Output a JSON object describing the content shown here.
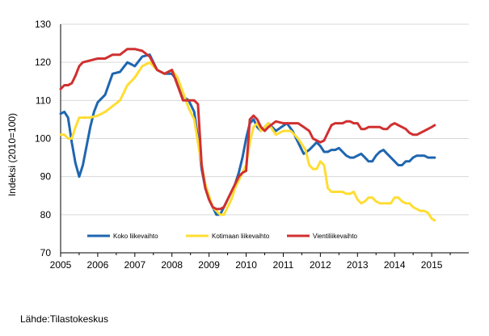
{
  "chart_data": {
    "type": "line",
    "title": "",
    "xlabel": "",
    "ylabel": "Indeksi (2010=100)",
    "ylim": [
      70,
      130
    ],
    "xlim": [
      2005,
      2016
    ],
    "yticks": [
      "70",
      "80",
      "90",
      "100",
      "110",
      "120",
      "130"
    ],
    "xticks": [
      "2005",
      "2006",
      "2007",
      "2008",
      "2009",
      "2010",
      "2011",
      "2012",
      "2013",
      "2014",
      "2015"
    ],
    "grid": "horizontal",
    "legend_position": "bottom-left inside",
    "source": "Lähde:Tilastokeskus",
    "series": [
      {
        "name": "Koko liikevaihto",
        "color": "#1f66b0",
        "x": [
          2005.0,
          2005.1,
          2005.2,
          2005.3,
          2005.4,
          2005.5,
          2005.6,
          2005.7,
          2005.8,
          2005.9,
          2006.0,
          2006.2,
          2006.4,
          2006.6,
          2006.8,
          2006.9,
          2007.0,
          2007.2,
          2007.4,
          2007.6,
          2007.8,
          2008.0,
          2008.15,
          2008.3,
          2008.45,
          2008.6,
          2008.7,
          2008.8,
          2008.9,
          2009.0,
          2009.1,
          2009.2,
          2009.3,
          2009.4,
          2009.5,
          2009.6,
          2009.7,
          2009.8,
          2009.9,
          2010.0,
          2010.1,
          2010.2,
          2010.3,
          2010.4,
          2010.5,
          2010.6,
          2010.8,
          2010.95,
          2011.1,
          2011.25,
          2011.4,
          2011.55,
          2011.7,
          2011.8,
          2011.9,
          2012.0,
          2012.1,
          2012.2,
          2012.3,
          2012.4,
          2012.5,
          2012.6,
          2012.7,
          2012.8,
          2012.9,
          2013.0,
          2013.1,
          2013.2,
          2013.3,
          2013.4,
          2013.5,
          2013.6,
          2013.7,
          2013.8,
          2013.9,
          2014.0,
          2014.1,
          2014.2,
          2014.3,
          2014.4,
          2014.5,
          2014.6,
          2014.7,
          2014.8,
          2014.9,
          2015.0,
          2015.08
        ],
        "values": [
          106.5,
          107,
          105.5,
          99,
          93.5,
          90,
          93,
          98,
          103,
          107,
          109.5,
          111.5,
          117,
          117.5,
          120,
          119.5,
          119,
          121.5,
          122,
          118,
          117,
          117,
          115,
          111,
          110,
          107,
          100,
          92,
          87,
          84,
          82,
          80,
          80,
          82,
          84,
          86,
          88,
          91,
          95,
          100,
          104,
          105,
          103,
          102,
          103,
          104,
          102,
          103,
          104,
          102,
          99,
          96,
          97,
          98,
          99,
          98,
          96.5,
          96.5,
          97,
          97,
          97.5,
          96.5,
          95.5,
          95,
          95,
          95.5,
          96,
          95,
          94,
          94,
          95.5,
          96.5,
          97,
          96,
          95,
          94,
          93,
          93,
          94,
          94,
          95,
          95.5,
          95.5,
          95.5,
          95,
          95,
          95
        ]
      },
      {
        "name": "Kotimaan liikevaihto",
        "color": "#ffdd33",
        "x": [
          2005.0,
          2005.1,
          2005.2,
          2005.3,
          2005.4,
          2005.5,
          2005.6,
          2005.8,
          2006.0,
          2006.2,
          2006.4,
          2006.6,
          2006.8,
          2007.0,
          2007.2,
          2007.4,
          2007.6,
          2007.8,
          2008.0,
          2008.15,
          2008.3,
          2008.45,
          2008.6,
          2008.7,
          2008.8,
          2008.9,
          2009.0,
          2009.1,
          2009.2,
          2009.3,
          2009.4,
          2009.5,
          2009.6,
          2009.7,
          2009.8,
          2009.9,
          2010.0,
          2010.1,
          2010.2,
          2010.3,
          2010.4,
          2010.5,
          2010.6,
          2010.8,
          2011.0,
          2011.2,
          2011.4,
          2011.6,
          2011.7,
          2011.8,
          2011.9,
          2012.0,
          2012.1,
          2012.2,
          2012.3,
          2012.4,
          2012.5,
          2012.6,
          2012.7,
          2012.8,
          2012.9,
          2013.0,
          2013.1,
          2013.2,
          2013.3,
          2013.4,
          2013.5,
          2013.6,
          2013.7,
          2013.8,
          2013.9,
          2014.0,
          2014.1,
          2014.2,
          2014.3,
          2014.4,
          2014.5,
          2014.6,
          2014.7,
          2014.8,
          2014.9,
          2015.0,
          2015.08
        ],
        "values": [
          101,
          101,
          100,
          100,
          103,
          105.5,
          105.5,
          105.5,
          106,
          107,
          108.5,
          110,
          114,
          116,
          119,
          120,
          118,
          117,
          118,
          116,
          112,
          108,
          105,
          99,
          93,
          88,
          85,
          82,
          81,
          80,
          80,
          82,
          84,
          87,
          89,
          91,
          93,
          99,
          103,
          104,
          102,
          103,
          104,
          101,
          102,
          102,
          100,
          97,
          93,
          92,
          92,
          94,
          93,
          87,
          86,
          86,
          86,
          86,
          85.5,
          85.5,
          86,
          84,
          83,
          83.5,
          84.5,
          84.5,
          83.5,
          83,
          83,
          83,
          83,
          84.5,
          84.5,
          83.5,
          83,
          83,
          82,
          81.5,
          81,
          81,
          80.5,
          79,
          78.5
        ]
      },
      {
        "name": "Vientiliikevaihto",
        "color": "#d03030",
        "x": [
          2005.0,
          2005.1,
          2005.2,
          2005.3,
          2005.4,
          2005.5,
          2005.6,
          2005.8,
          2006.0,
          2006.2,
          2006.4,
          2006.6,
          2006.8,
          2007.0,
          2007.2,
          2007.4,
          2007.6,
          2007.8,
          2008.0,
          2008.15,
          2008.3,
          2008.45,
          2008.6,
          2008.7,
          2008.8,
          2008.9,
          2009.0,
          2009.1,
          2009.2,
          2009.3,
          2009.4,
          2009.5,
          2009.6,
          2009.7,
          2009.8,
          2009.9,
          2010.0,
          2010.1,
          2010.15,
          2010.2,
          2010.3,
          2010.4,
          2010.5,
          2010.6,
          2010.8,
          2011.0,
          2011.2,
          2011.4,
          2011.55,
          2011.7,
          2011.8,
          2011.9,
          2012.0,
          2012.1,
          2012.2,
          2012.3,
          2012.4,
          2012.5,
          2012.6,
          2012.7,
          2012.8,
          2012.9,
          2013.0,
          2013.1,
          2013.2,
          2013.3,
          2013.4,
          2013.5,
          2013.6,
          2013.7,
          2013.8,
          2013.9,
          2014.0,
          2014.1,
          2014.2,
          2014.3,
          2014.4,
          2014.5,
          2014.6,
          2014.7,
          2014.8,
          2014.9,
          2015.0,
          2015.08
        ],
        "values": [
          113,
          114,
          114,
          114.5,
          116.5,
          119,
          120,
          120.5,
          121,
          121,
          122,
          122,
          123.5,
          123.5,
          123,
          121.5,
          118,
          117,
          118,
          114,
          110,
          110,
          110,
          109,
          93,
          87,
          84,
          82,
          81.5,
          81.5,
          82,
          84,
          86,
          88,
          90,
          91,
          91.5,
          105,
          105.5,
          106,
          105,
          103,
          102,
          103,
          104.5,
          104,
          104,
          104,
          103,
          102,
          100,
          99.5,
          99,
          99.5,
          101.5,
          103.5,
          104,
          104,
          104,
          104.5,
          104.5,
          104,
          104,
          102.5,
          102.5,
          103,
          103,
          103,
          103,
          102.5,
          102.5,
          103.5,
          104,
          103.5,
          103,
          102.5,
          101.5,
          101,
          101,
          101.5,
          102,
          102.5,
          103,
          103.5
        ]
      }
    ]
  }
}
